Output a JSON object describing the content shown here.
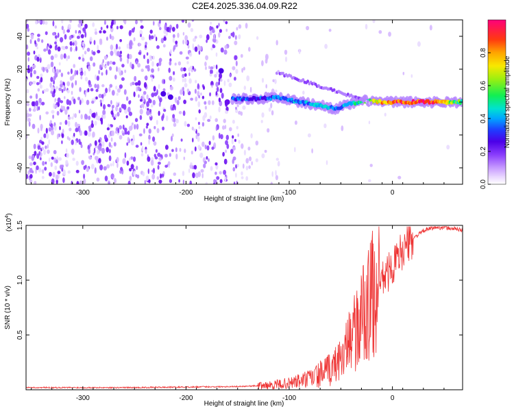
{
  "title": "C2E4.2025.336.04.09.R22",
  "colors": {
    "accent": "#ee3030",
    "palette": [
      "#ffffff",
      "#e9dcff",
      "#d6b8ff",
      "#b482ff",
      "#8a3dfc",
      "#6a10ef",
      "#4b00e8",
      "#1f3cff",
      "#00a6ff",
      "#00e2d0",
      "#12ef52",
      "#9cef10",
      "#f8e800",
      "#ffa500",
      "#ff3a10",
      "#ff007a"
    ]
  },
  "chart_data": [
    {
      "type": "heatmap",
      "title": "C2E4.2025.336.04.09.R22",
      "xlabel": "Height of straight line (km)",
      "ylabel": "Frequency (Hz)",
      "xlim": [
        -355,
        68
      ],
      "ylim": [
        -50,
        50
      ],
      "xticks": [
        "-300",
        "-200",
        "-100",
        "0"
      ],
      "yticks": [
        "-40",
        "-20",
        "0",
        "20",
        "40"
      ],
      "colorbar": {
        "label": "Normalized spectral amplitude",
        "range": [
          0,
          1
        ],
        "ticks": [
          "0.0",
          "0.2",
          "0.4",
          "0.6",
          "0.8"
        ]
      },
      "signal_ridge": {
        "description_points_x": [
          -155,
          -130,
          -110,
          -90,
          -70,
          -55,
          -40,
          -25,
          -10,
          0,
          20,
          40,
          68
        ],
        "frequency_hz": [
          2,
          2,
          3,
          0,
          -2,
          -4,
          -1,
          1,
          0,
          0,
          0,
          0,
          0
        ],
        "amplitude": [
          0.45,
          0.45,
          0.5,
          0.5,
          0.55,
          0.5,
          0.55,
          0.65,
          0.85,
          0.9,
          0.95,
          0.95,
          0.6
        ]
      }
    },
    {
      "type": "line",
      "xlabel": "Height of straight line (km)",
      "ylabel": "SNR (10 * v/v)",
      "multiplier_label": "(x10",
      "multiplier_exponent": "4",
      "multiplier_close": ")",
      "xlim": [
        -355,
        68
      ],
      "ylim": [
        0,
        1.5
      ],
      "xticks": [
        "-300",
        "-200",
        "-100",
        "0"
      ],
      "yticks": [
        "0.5",
        "1.0",
        "1.5"
      ],
      "series": [
        {
          "name": "SNR",
          "x": [
            -355,
            -300,
            -250,
            -200,
            -150,
            -120,
            -100,
            -80,
            -60,
            -50,
            -40,
            -30,
            -20,
            -10,
            0,
            10,
            20,
            30,
            40,
            50,
            68
          ],
          "y": [
            0.02,
            0.02,
            0.02,
            0.025,
            0.03,
            0.04,
            0.06,
            0.1,
            0.18,
            0.3,
            0.45,
            0.65,
            0.85,
            1.0,
            1.12,
            1.28,
            1.38,
            1.45,
            1.48,
            1.48,
            1.46
          ]
        }
      ]
    }
  ]
}
